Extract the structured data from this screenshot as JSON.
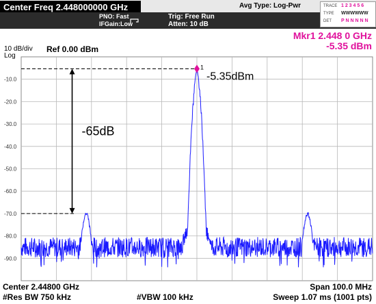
{
  "header": {
    "center_freq": "Center Freq  2.448000000 GHz",
    "pno": "PNO: Fast",
    "ifgain": "IFGain:Low",
    "trigger": "Trig: Free Run",
    "atten": "Atten: 10 dB",
    "avg_type": "Avg Type: Log-Pwr",
    "trace_label": "TRACE",
    "trace_values": "1 2 3 4 5 6",
    "type_label": "TYPE",
    "type_values": "WWWWWW",
    "det_label": "DET",
    "det_values": "P N N N N N"
  },
  "scale": {
    "div": "10 dB/div",
    "mode": "Log",
    "ref": "Ref 0.00 dBm"
  },
  "marker": {
    "line1": "Mkr1 2.448 0 GHz",
    "line2": "-5.35 dBm",
    "number": "1"
  },
  "annotations": {
    "peak_label": "-5.35dBm",
    "delta_label": "-65dB"
  },
  "y_ticks": [
    "-10.0",
    "-20.0",
    "-30.0",
    "-40.0",
    "-50.0",
    "-60.0",
    "-70.0",
    "-80.0",
    "-90.0"
  ],
  "footer": {
    "center": "Center 2.44800 GHz",
    "span": "Span 100.0 MHz",
    "rbw": "#Res BW 750 kHz",
    "vbw": "#VBW 100 kHz",
    "sweep": "Sweep  1.07 ms (1001 pts)"
  },
  "colors": {
    "trace": "#1a1aff",
    "marker": "#e0119c",
    "grid": "#b8b8b8"
  },
  "chart_data": {
    "type": "line",
    "ylim": [
      -100,
      0
    ],
    "xlim": [
      2.398,
      2.498
    ],
    "xunit": "GHz",
    "yunit": "dBm",
    "peak": {
      "x": 2.448,
      "y": -5.35
    },
    "spurs": [
      {
        "x": 2.4165,
        "y": -70
      },
      {
        "x": 2.4795,
        "y": -70
      }
    ],
    "noise_floor": -85,
    "reference_line_level": -70
  }
}
